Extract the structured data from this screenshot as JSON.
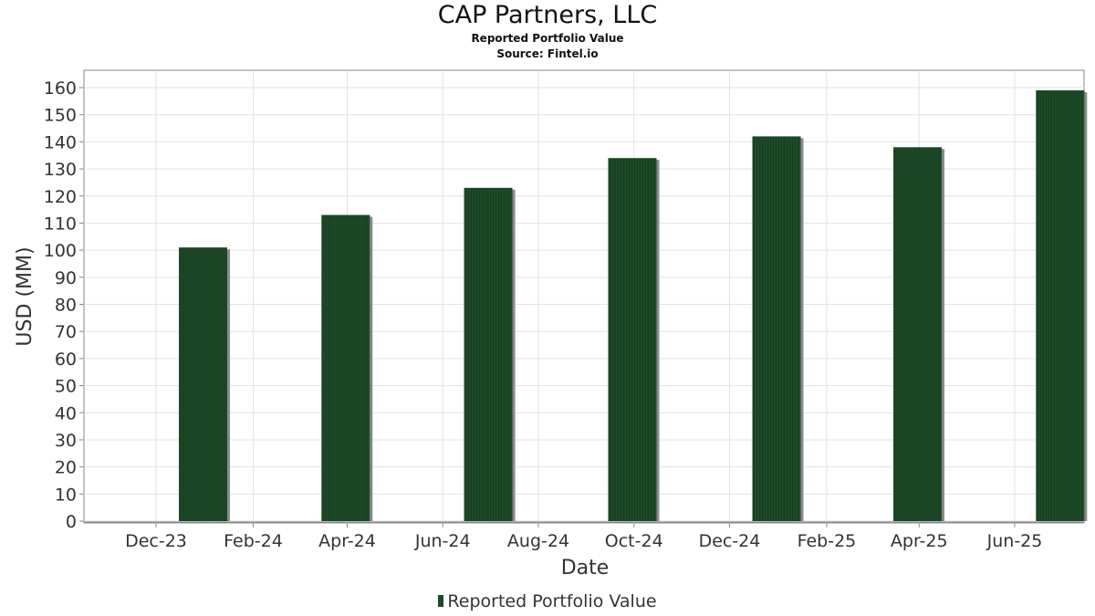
{
  "header": {
    "title": "CAP Partners, LLC",
    "subtitle": "Reported Portfolio Value",
    "source": "Source: Fintel.io"
  },
  "legend": {
    "label": "Reported Portfolio Value"
  },
  "chart_data": {
    "type": "bar",
    "title": "CAP Partners, LLC",
    "subtitle": "Reported Portfolio Value",
    "xlabel": "Date",
    "ylabel": "USD (MM)",
    "ylim": [
      0,
      165
    ],
    "yticks": [
      0,
      10,
      20,
      30,
      40,
      50,
      60,
      70,
      80,
      90,
      100,
      110,
      120,
      130,
      140,
      150,
      160
    ],
    "xticks": [
      "Dec-23",
      "Feb-24",
      "Apr-24",
      "Jun-24",
      "Aug-24",
      "Oct-24",
      "Dec-24",
      "Feb-25",
      "Apr-25",
      "Jun-25"
    ],
    "grid": true,
    "legend_position": "bottom",
    "bar_color": "#1e4a28",
    "series": [
      {
        "name": "Reported Portfolio Value",
        "x": [
          "2023-12-31",
          "2024-03-31",
          "2024-06-30",
          "2024-09-30",
          "2024-12-31",
          "2025-03-31",
          "2025-06-30"
        ],
        "values": [
          101,
          113,
          123,
          134,
          142,
          138,
          159
        ]
      }
    ]
  }
}
